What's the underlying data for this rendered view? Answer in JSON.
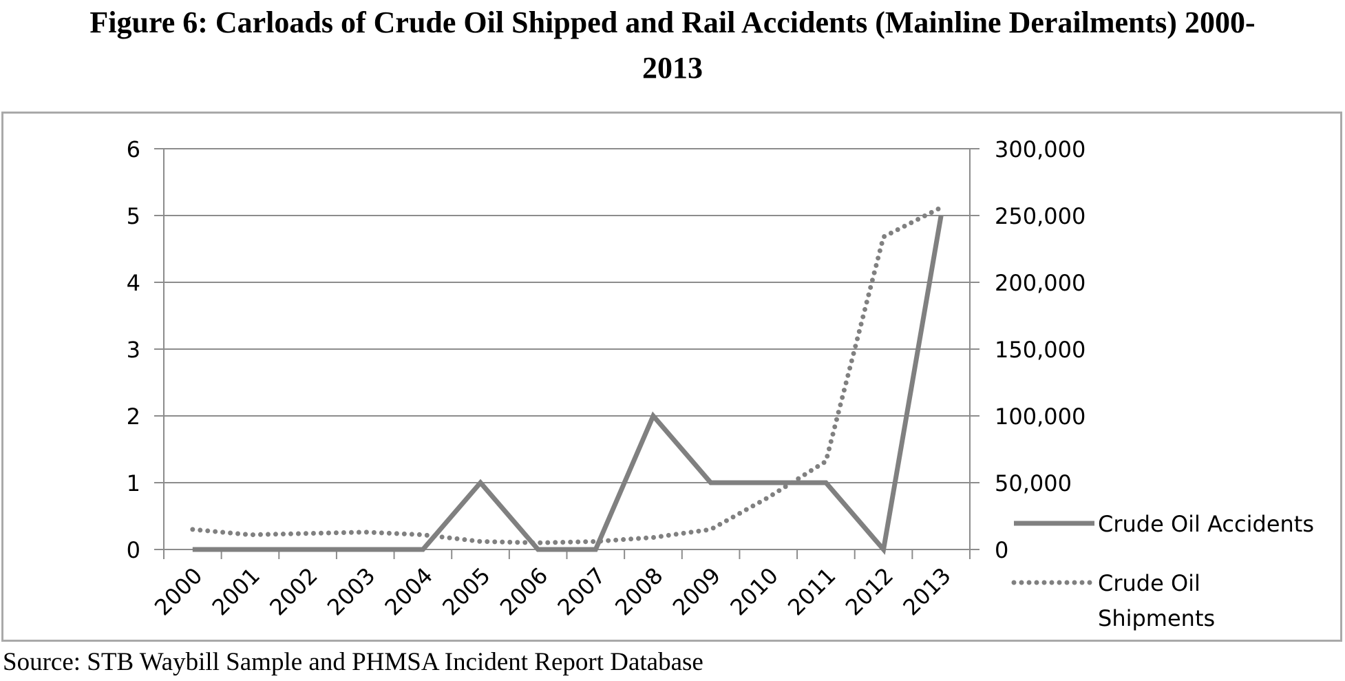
{
  "title_line1": "Figure 6: Carloads of Crude Oil Shipped and Rail Accidents (Mainline Derailments) 2000-",
  "title_line2": "2013",
  "source": "Source: STB Waybill Sample and PHMSA Incident Report Database",
  "chart_data": {
    "type": "line",
    "categories": [
      "2000",
      "2001",
      "2002",
      "2003",
      "2004",
      "2005",
      "2006",
      "2007",
      "2008",
      "2009",
      "2010",
      "2011",
      "2012",
      "2013"
    ],
    "series": [
      {
        "name": "Crude Oil Accidents",
        "axis": "left",
        "style": "solid",
        "color": "#808080",
        "values": [
          0,
          0,
          0,
          0,
          0,
          1,
          0,
          0,
          2,
          1,
          1,
          1,
          0,
          5
        ]
      },
      {
        "name": "Crude Oil Shipments",
        "axis": "right",
        "style": "dotted",
        "color": "#808080",
        "values": [
          15000,
          11000,
          12000,
          13000,
          11000,
          6000,
          5000,
          6000,
          9000,
          15000,
          39000,
          66000,
          234000,
          256000
        ]
      }
    ],
    "y_left": {
      "ylim": [
        0,
        6
      ],
      "ticks": [
        "0",
        "1",
        "2",
        "3",
        "4",
        "5",
        "6"
      ]
    },
    "y_right": {
      "ylim": [
        0,
        300000
      ],
      "ticks": [
        "0",
        "50,000",
        "100,000",
        "150,000",
        "200,000",
        "250,000",
        "300,000"
      ]
    },
    "grid": true,
    "legend_position": "right"
  }
}
